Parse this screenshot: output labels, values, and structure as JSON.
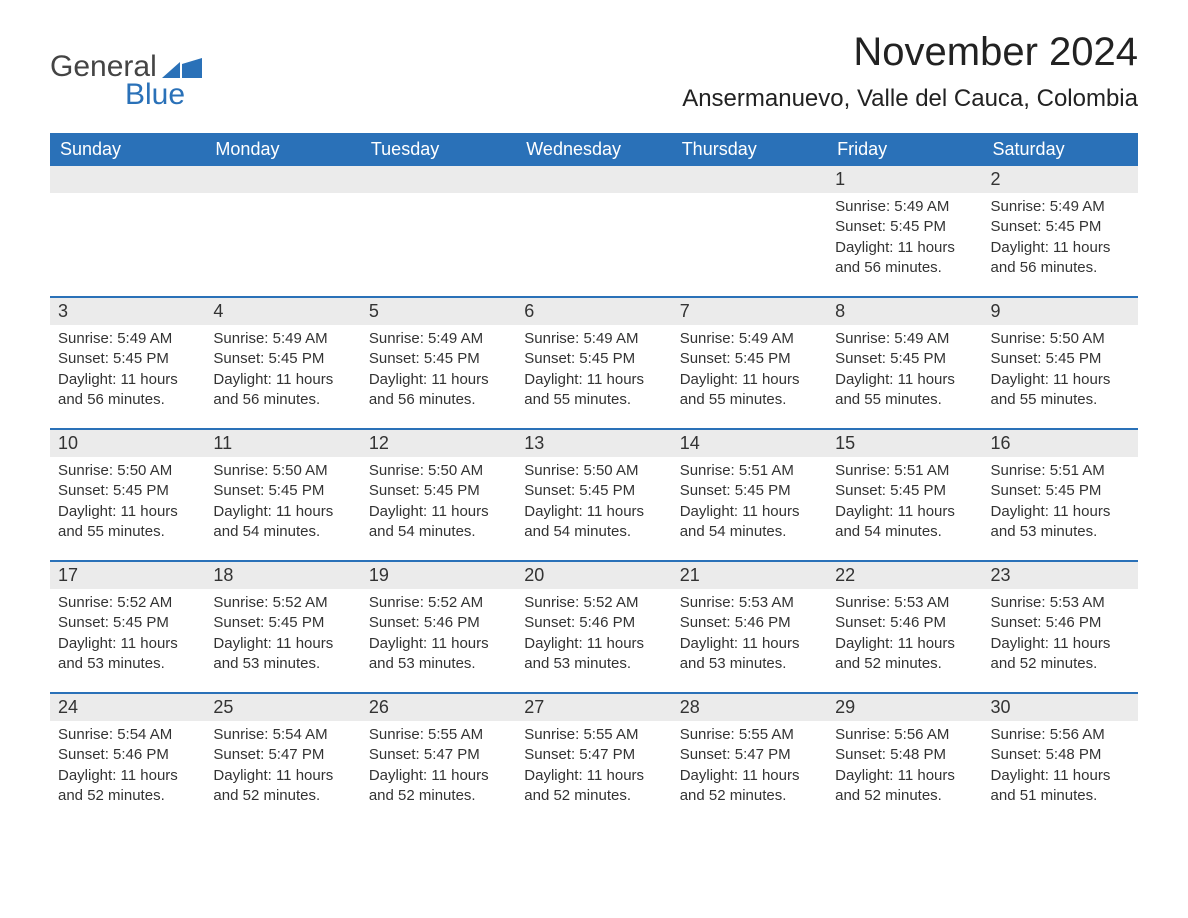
{
  "logo": {
    "text1": "General",
    "text2": "Blue",
    "icon_color": "#2a71b8"
  },
  "title": {
    "month": "November 2024",
    "location": "Ansermanuevo, Valle del Cauca, Colombia"
  },
  "colors": {
    "header_bg": "#2a71b8",
    "header_text": "#ffffff",
    "row_border": "#2a71b8",
    "daynum_bg": "#ebebeb",
    "body_text": "#333333",
    "bg": "#ffffff"
  },
  "typography": {
    "month_title_fontsize": 40,
    "location_fontsize": 24,
    "dayhdr_fontsize": 18,
    "daynum_fontsize": 18,
    "info_fontsize": 15
  },
  "layout": {
    "columns": 7,
    "rows": 5,
    "cell_min_height": 130
  },
  "day_headers": [
    "Sunday",
    "Monday",
    "Tuesday",
    "Wednesday",
    "Thursday",
    "Friday",
    "Saturday"
  ],
  "weeks": [
    [
      {
        "empty": true
      },
      {
        "empty": true
      },
      {
        "empty": true
      },
      {
        "empty": true
      },
      {
        "empty": true
      },
      {
        "day": "1",
        "sunrise": "Sunrise: 5:49 AM",
        "sunset": "Sunset: 5:45 PM",
        "daylight": "Daylight: 11 hours and 56 minutes."
      },
      {
        "day": "2",
        "sunrise": "Sunrise: 5:49 AM",
        "sunset": "Sunset: 5:45 PM",
        "daylight": "Daylight: 11 hours and 56 minutes."
      }
    ],
    [
      {
        "day": "3",
        "sunrise": "Sunrise: 5:49 AM",
        "sunset": "Sunset: 5:45 PM",
        "daylight": "Daylight: 11 hours and 56 minutes."
      },
      {
        "day": "4",
        "sunrise": "Sunrise: 5:49 AM",
        "sunset": "Sunset: 5:45 PM",
        "daylight": "Daylight: 11 hours and 56 minutes."
      },
      {
        "day": "5",
        "sunrise": "Sunrise: 5:49 AM",
        "sunset": "Sunset: 5:45 PM",
        "daylight": "Daylight: 11 hours and 56 minutes."
      },
      {
        "day": "6",
        "sunrise": "Sunrise: 5:49 AM",
        "sunset": "Sunset: 5:45 PM",
        "daylight": "Daylight: 11 hours and 55 minutes."
      },
      {
        "day": "7",
        "sunrise": "Sunrise: 5:49 AM",
        "sunset": "Sunset: 5:45 PM",
        "daylight": "Daylight: 11 hours and 55 minutes."
      },
      {
        "day": "8",
        "sunrise": "Sunrise: 5:49 AM",
        "sunset": "Sunset: 5:45 PM",
        "daylight": "Daylight: 11 hours and 55 minutes."
      },
      {
        "day": "9",
        "sunrise": "Sunrise: 5:50 AM",
        "sunset": "Sunset: 5:45 PM",
        "daylight": "Daylight: 11 hours and 55 minutes."
      }
    ],
    [
      {
        "day": "10",
        "sunrise": "Sunrise: 5:50 AM",
        "sunset": "Sunset: 5:45 PM",
        "daylight": "Daylight: 11 hours and 55 minutes."
      },
      {
        "day": "11",
        "sunrise": "Sunrise: 5:50 AM",
        "sunset": "Sunset: 5:45 PM",
        "daylight": "Daylight: 11 hours and 54 minutes."
      },
      {
        "day": "12",
        "sunrise": "Sunrise: 5:50 AM",
        "sunset": "Sunset: 5:45 PM",
        "daylight": "Daylight: 11 hours and 54 minutes."
      },
      {
        "day": "13",
        "sunrise": "Sunrise: 5:50 AM",
        "sunset": "Sunset: 5:45 PM",
        "daylight": "Daylight: 11 hours and 54 minutes."
      },
      {
        "day": "14",
        "sunrise": "Sunrise: 5:51 AM",
        "sunset": "Sunset: 5:45 PM",
        "daylight": "Daylight: 11 hours and 54 minutes."
      },
      {
        "day": "15",
        "sunrise": "Sunrise: 5:51 AM",
        "sunset": "Sunset: 5:45 PM",
        "daylight": "Daylight: 11 hours and 54 minutes."
      },
      {
        "day": "16",
        "sunrise": "Sunrise: 5:51 AM",
        "sunset": "Sunset: 5:45 PM",
        "daylight": "Daylight: 11 hours and 53 minutes."
      }
    ],
    [
      {
        "day": "17",
        "sunrise": "Sunrise: 5:52 AM",
        "sunset": "Sunset: 5:45 PM",
        "daylight": "Daylight: 11 hours and 53 minutes."
      },
      {
        "day": "18",
        "sunrise": "Sunrise: 5:52 AM",
        "sunset": "Sunset: 5:45 PM",
        "daylight": "Daylight: 11 hours and 53 minutes."
      },
      {
        "day": "19",
        "sunrise": "Sunrise: 5:52 AM",
        "sunset": "Sunset: 5:46 PM",
        "daylight": "Daylight: 11 hours and 53 minutes."
      },
      {
        "day": "20",
        "sunrise": "Sunrise: 5:52 AM",
        "sunset": "Sunset: 5:46 PM",
        "daylight": "Daylight: 11 hours and 53 minutes."
      },
      {
        "day": "21",
        "sunrise": "Sunrise: 5:53 AM",
        "sunset": "Sunset: 5:46 PM",
        "daylight": "Daylight: 11 hours and 53 minutes."
      },
      {
        "day": "22",
        "sunrise": "Sunrise: 5:53 AM",
        "sunset": "Sunset: 5:46 PM",
        "daylight": "Daylight: 11 hours and 52 minutes."
      },
      {
        "day": "23",
        "sunrise": "Sunrise: 5:53 AM",
        "sunset": "Sunset: 5:46 PM",
        "daylight": "Daylight: 11 hours and 52 minutes."
      }
    ],
    [
      {
        "day": "24",
        "sunrise": "Sunrise: 5:54 AM",
        "sunset": "Sunset: 5:46 PM",
        "daylight": "Daylight: 11 hours and 52 minutes."
      },
      {
        "day": "25",
        "sunrise": "Sunrise: 5:54 AM",
        "sunset": "Sunset: 5:47 PM",
        "daylight": "Daylight: 11 hours and 52 minutes."
      },
      {
        "day": "26",
        "sunrise": "Sunrise: 5:55 AM",
        "sunset": "Sunset: 5:47 PM",
        "daylight": "Daylight: 11 hours and 52 minutes."
      },
      {
        "day": "27",
        "sunrise": "Sunrise: 5:55 AM",
        "sunset": "Sunset: 5:47 PM",
        "daylight": "Daylight: 11 hours and 52 minutes."
      },
      {
        "day": "28",
        "sunrise": "Sunrise: 5:55 AM",
        "sunset": "Sunset: 5:47 PM",
        "daylight": "Daylight: 11 hours and 52 minutes."
      },
      {
        "day": "29",
        "sunrise": "Sunrise: 5:56 AM",
        "sunset": "Sunset: 5:48 PM",
        "daylight": "Daylight: 11 hours and 52 minutes."
      },
      {
        "day": "30",
        "sunrise": "Sunrise: 5:56 AM",
        "sunset": "Sunset: 5:48 PM",
        "daylight": "Daylight: 11 hours and 51 minutes."
      }
    ]
  ]
}
